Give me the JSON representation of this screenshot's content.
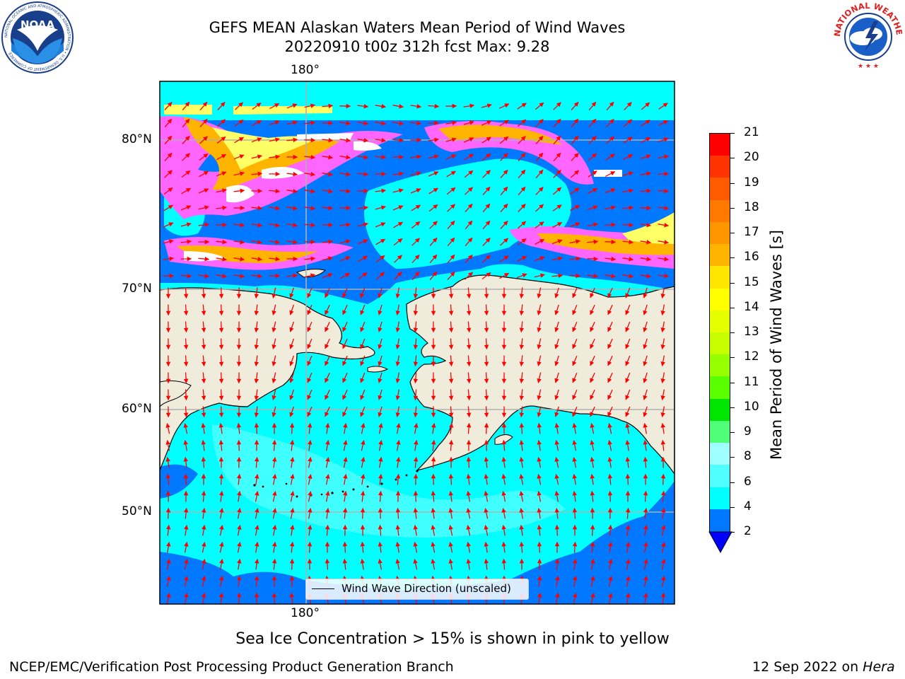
{
  "title": {
    "line1": "GEFS MEAN Alaskan Waters Mean Period of Wind Waves",
    "line2": "20220910 t00z 312h fcst   Max: 9.28"
  },
  "map": {
    "lon_top": "180°",
    "lon_bottom": "180°",
    "lat_labels": [
      "80°N",
      "70°N",
      "60°N",
      "50°N"
    ],
    "legend_label": "Wind Wave Direction (unscaled)"
  },
  "colorbar": {
    "title": "Mean Period of Wind Waves [s]",
    "ticks": [
      "21",
      "20",
      "19",
      "18",
      "17",
      "16",
      "15",
      "14",
      "13",
      "12",
      "11",
      "10",
      "9",
      "8",
      "6",
      "4",
      "2"
    ],
    "colors": [
      "#ff0000",
      "#ff3300",
      "#ff5a00",
      "#ff7800",
      "#ff9600",
      "#ffb400",
      "#ffe600",
      "#ffff00",
      "#e6ff00",
      "#c8ff00",
      "#96ff00",
      "#5aff00",
      "#00e600",
      "#50ff78",
      "#a0ffff",
      "#50ffff",
      "#00ffff",
      "#0078ff"
    ],
    "extend_color": "#0000ff"
  },
  "logos": {
    "noaa": {
      "text": "NOAA",
      "ring": "NATIONAL OCEANIC AND ATMOSPHERIC ADMINISTRATION • U.S. DEPARTMENT OF COMMERCE"
    },
    "nws": {
      "ring": "NATIONAL WEATHER SERVICE"
    }
  },
  "colors": {
    "land": "#efecdc",
    "ocean_main": "#00ffff",
    "ocean_low": "#0078ff",
    "ocean_light": "#50ffff",
    "ice_pink": "#ff66ff",
    "ice_orange": "#ffb400",
    "ice_yellow": "#ffff66",
    "arrow": "#ff0000"
  },
  "note": "Sea Ice Concentration > 15% is shown in pink to yellow",
  "footer": {
    "left": "NCEP/EMC/Verification Post Processing Product Generation Branch",
    "right_date": "12 Sep 2022 on ",
    "right_machine": "Hera"
  }
}
